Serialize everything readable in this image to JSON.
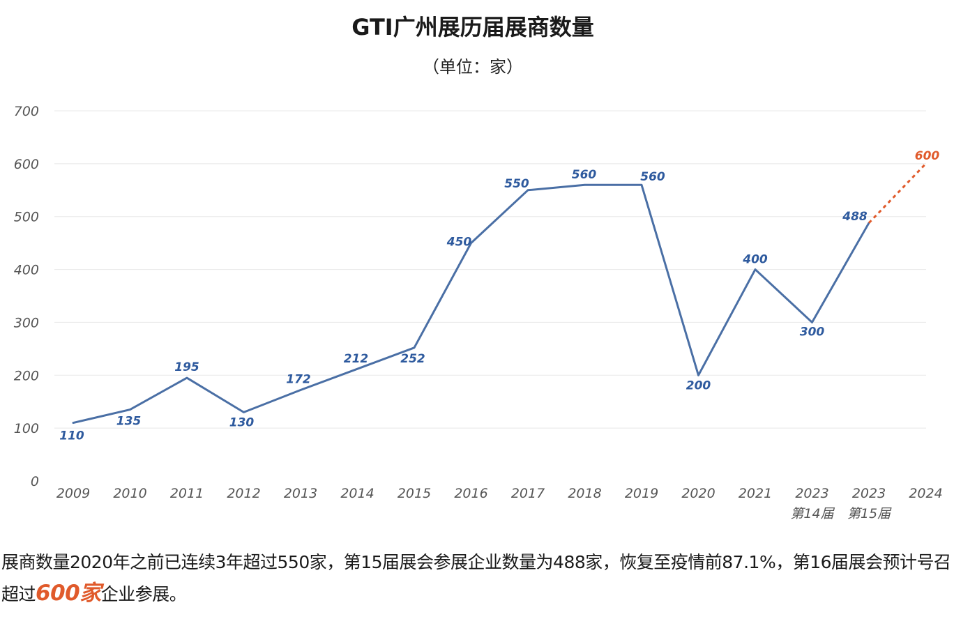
{
  "header": {
    "title": "GTI广州展历届展商数量",
    "subtitle": "（单位：家）"
  },
  "colors": {
    "series_line": "#4a6fa5",
    "label_blue": "#2e5a9e",
    "forecast": "#e05a2b",
    "grid": "#e8e8e8",
    "tick": "#555555"
  },
  "chart_data": {
    "type": "line",
    "title": "GTI广州展历届展商数量",
    "subtitle": "（单位：家）",
    "xlabel": "",
    "ylabel": "",
    "ylim": [
      0,
      700
    ],
    "yticks": [
      0,
      100,
      200,
      300,
      400,
      500,
      600,
      700
    ],
    "grid": true,
    "categories": [
      "2009",
      "2010",
      "2011",
      "2012",
      "2013",
      "2014",
      "2015",
      "2016",
      "2017",
      "2018",
      "2019",
      "2020",
      "2021",
      "2023",
      "2023",
      "2024"
    ],
    "category_sublabels": [
      "",
      "",
      "",
      "",
      "",
      "",
      "",
      "",
      "",
      "",
      "",
      "",
      "",
      "第14届",
      "第15届",
      ""
    ],
    "values": [
      110,
      135,
      195,
      130,
      172,
      212,
      252,
      450,
      550,
      560,
      560,
      200,
      400,
      300,
      488,
      600
    ],
    "data_labels": [
      "110",
      "135",
      "195",
      "130",
      "172",
      "212",
      "252",
      "450",
      "550",
      "560",
      "560",
      "200",
      "400",
      "300",
      "488",
      "600"
    ],
    "forecast_from_index": 14
  },
  "caption": {
    "part1": "展商数量2020年之前已连续3年超过550家，第15届展会参展企业数量为488家，恢复至疫情前87.1%，第16届展会预计号召超过",
    "highlight": "600家",
    "part2": "企业参展。"
  }
}
